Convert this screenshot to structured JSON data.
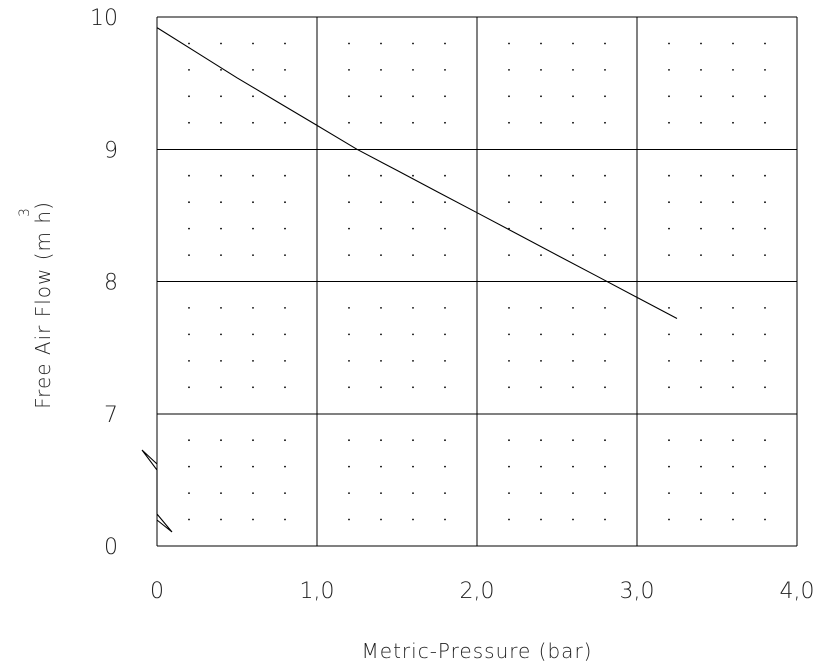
{
  "chart_data": {
    "type": "line",
    "xlabel": "Metric-Pressure (bar)",
    "ylabel": "Free Air Flow (m h)",
    "ylabel_superscript": "3",
    "x_ticks": [
      "0",
      "1,0",
      "2,0",
      "3,0",
      "4,0"
    ],
    "y_ticks": [
      "0",
      "7",
      "8",
      "9",
      "10"
    ],
    "xlim": [
      0,
      4
    ],
    "ylim": [
      6,
      10
    ],
    "y_axis_break": true,
    "grid": true,
    "minor_dots": true,
    "series": [
      {
        "x": [
          0,
          0.25,
          0.5,
          0.75,
          1.0,
          1.25,
          1.5,
          1.75,
          2.0,
          2.25,
          2.5,
          2.75,
          3.0,
          3.25
        ],
        "y": [
          9.92,
          9.73,
          9.54,
          9.36,
          9.18,
          9.0,
          8.84,
          8.68,
          8.52,
          8.36,
          8.2,
          8.04,
          7.88,
          7.72
        ]
      }
    ]
  }
}
